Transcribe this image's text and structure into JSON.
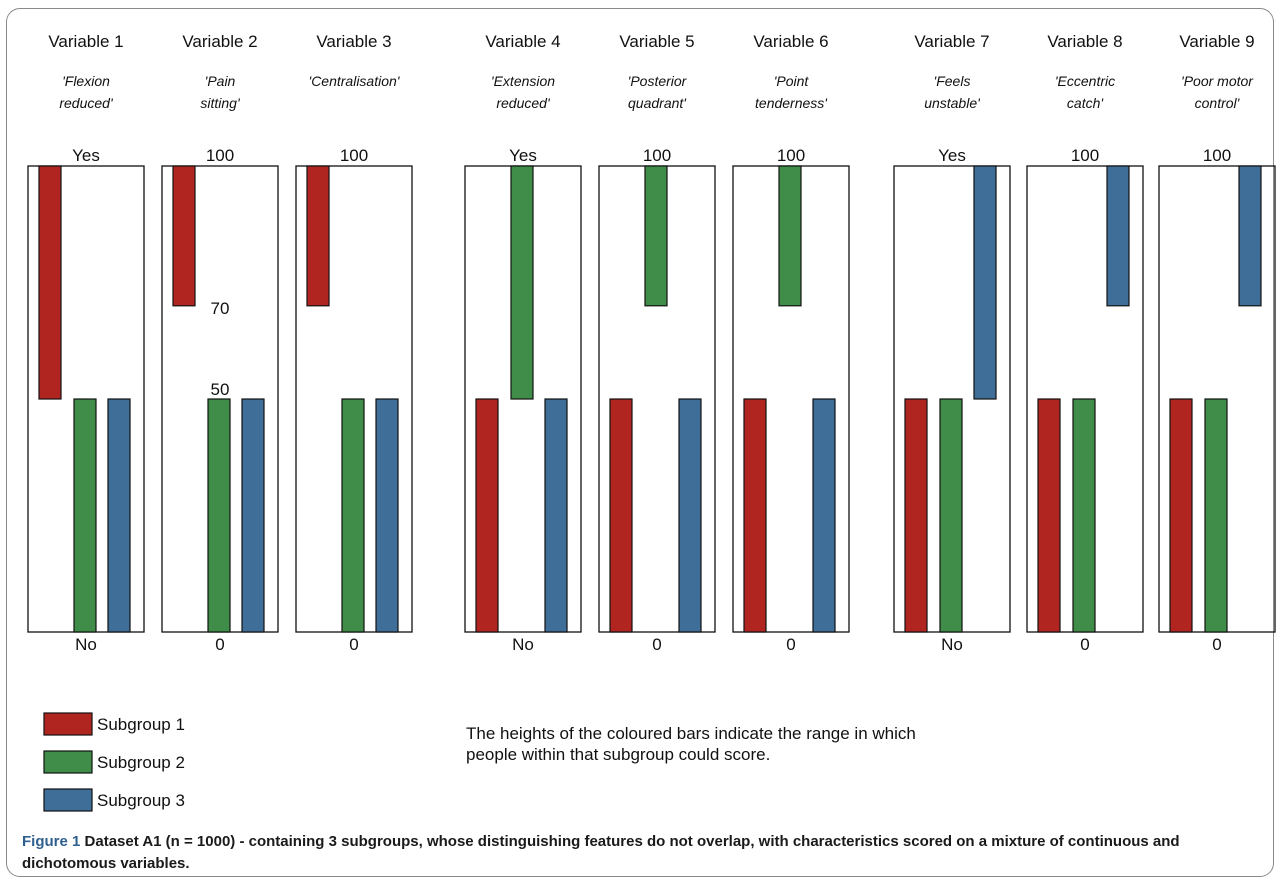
{
  "chart_data": {
    "type": "bar",
    "subtitle": "The heights of the coloured bars indicate the range in which people within that subgroup could score.",
    "legend": [
      {
        "name": "Subgroup 1",
        "color": "#b02520"
      },
      {
        "name": "Subgroup 2",
        "color": "#3f8d48"
      },
      {
        "name": "Subgroup 3",
        "color": "#3f6f99"
      }
    ],
    "panels": [
      {
        "name": "Variable 1",
        "feature": "'Flexion reduced'",
        "scale": "dichotomous",
        "top_label": "Yes",
        "bottom_label": "No",
        "mid_labels": [],
        "ranges": [
          [
            50,
            100
          ],
          [
            0,
            50
          ],
          [
            0,
            50
          ]
        ]
      },
      {
        "name": "Variable 2",
        "feature": "'Pain sitting'",
        "scale": "continuous",
        "top_label": "100",
        "bottom_label": "0",
        "mid_labels": [
          {
            "text": "70",
            "value": 70
          },
          {
            "text": "50",
            "value": 50
          }
        ],
        "ranges": [
          [
            70,
            100
          ],
          [
            0,
            50
          ],
          [
            0,
            50
          ]
        ]
      },
      {
        "name": "Variable 3",
        "feature": "'Centralisation'",
        "scale": "continuous",
        "top_label": "100",
        "bottom_label": "0",
        "mid_labels": [],
        "ranges": [
          [
            70,
            100
          ],
          [
            0,
            50
          ],
          [
            0,
            50
          ]
        ]
      },
      {
        "name": "Variable 4",
        "feature": "'Extension reduced'",
        "scale": "dichotomous",
        "top_label": "Yes",
        "bottom_label": "No",
        "mid_labels": [],
        "ranges": [
          [
            0,
            50
          ],
          [
            50,
            100
          ],
          [
            0,
            50
          ]
        ]
      },
      {
        "name": "Variable 5",
        "feature": "'Posterior quadrant'",
        "scale": "continuous",
        "top_label": "100",
        "bottom_label": "0",
        "mid_labels": [],
        "ranges": [
          [
            0,
            50
          ],
          [
            70,
            100
          ],
          [
            0,
            50
          ]
        ]
      },
      {
        "name": "Variable 6",
        "feature": "'Point tenderness'",
        "scale": "continuous",
        "top_label": "100",
        "bottom_label": "0",
        "mid_labels": [],
        "ranges": [
          [
            0,
            50
          ],
          [
            70,
            100
          ],
          [
            0,
            50
          ]
        ]
      },
      {
        "name": "Variable 7",
        "feature": "'Feels unstable'",
        "scale": "dichotomous",
        "top_label": "Yes",
        "bottom_label": "No",
        "mid_labels": [],
        "ranges": [
          [
            0,
            50
          ],
          [
            0,
            50
          ],
          [
            50,
            100
          ]
        ]
      },
      {
        "name": "Variable 8",
        "feature": "'Eccentric catch'",
        "scale": "continuous",
        "top_label": "100",
        "bottom_label": "0",
        "mid_labels": [],
        "ranges": [
          [
            0,
            50
          ],
          [
            0,
            50
          ],
          [
            70,
            100
          ]
        ]
      },
      {
        "name": "Variable 9",
        "feature": "'Poor motor control'",
        "scale": "continuous",
        "top_label": "100",
        "bottom_label": "0",
        "mid_labels": [],
        "ranges": [
          [
            0,
            50
          ],
          [
            0,
            50
          ],
          [
            70,
            100
          ]
        ]
      }
    ]
  },
  "caption": {
    "lead": "Figure 1",
    "text": "Dataset A1 (n = 1000) - containing 3 subgroups, whose distinguishing features do not overlap, with characteristics scored on a mixture of continuous and dichotomous variables."
  }
}
